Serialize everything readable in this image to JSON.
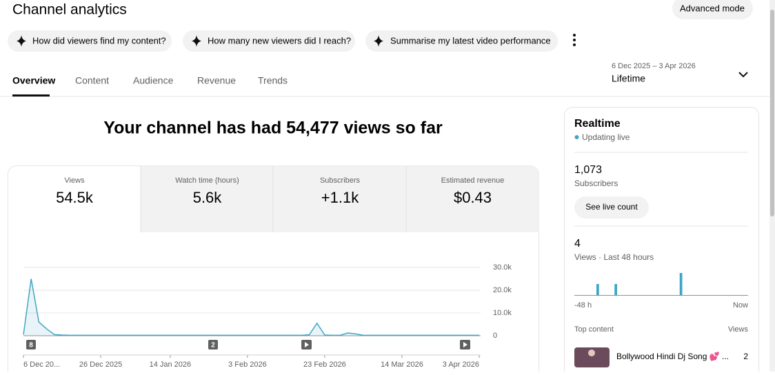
{
  "header": {
    "title": "Channel analytics",
    "advanced_mode": "Advanced mode"
  },
  "prompts": [
    "How did viewers find my content?",
    "How many new viewers did I reach?",
    "Summarise my latest video performance"
  ],
  "tabs": [
    "Overview",
    "Content",
    "Audience",
    "Revenue",
    "Trends"
  ],
  "date_range": {
    "range": "6 Dec 2025 – 3 Apr 2026",
    "period": "Lifetime"
  },
  "headline": "Your channel has had 54,477 views so far",
  "metrics": [
    {
      "label": "Views",
      "value": "54.5k"
    },
    {
      "label": "Watch time (hours)",
      "value": "5.6k"
    },
    {
      "label": "Subscribers",
      "value": "+1.1k"
    },
    {
      "label": "Estimated revenue",
      "value": "$0.43"
    }
  ],
  "chart": {
    "type": "line",
    "color": "#3ea6c4",
    "categories": [
      "6 Dec 20...",
      null,
      null,
      null,
      null,
      null,
      null,
      null,
      null,
      null,
      "26 Dec 2025",
      null,
      null,
      null,
      null,
      null,
      null,
      null,
      null,
      "14 Jan 2026",
      null,
      null,
      null,
      null,
      null,
      null,
      null,
      null,
      null,
      "3 Feb 2026",
      null,
      null,
      null,
      null,
      null,
      null,
      null,
      null,
      null,
      "23 Feb 2026",
      null,
      null,
      null,
      null,
      null,
      null,
      null,
      null,
      null,
      "14 Mar 2026",
      null,
      null,
      null,
      null,
      null,
      null,
      null,
      null,
      null,
      "3 Apr 2026"
    ],
    "values": [
      500,
      25000,
      6000,
      3000,
      500,
      300,
      200,
      200,
      200,
      200,
      200,
      200,
      200,
      200,
      200,
      200,
      200,
      200,
      200,
      200,
      200,
      200,
      200,
      200,
      200,
      200,
      200,
      200,
      200,
      200,
      200,
      200,
      200,
      200,
      200,
      200,
      200,
      400,
      5500,
      300,
      200,
      200,
      1200,
      800,
      200,
      200,
      200,
      200,
      200,
      200,
      200,
      200,
      200,
      200,
      200,
      200,
      200,
      200,
      200,
      200
    ],
    "ylim": [
      0,
      30000
    ],
    "yticks": [
      0,
      {
        "value": 10000,
        "label": "10.0k"
      },
      {
        "value": 20000,
        "label": "20.0k"
      },
      {
        "value": 30000,
        "label": "30.0k"
      }
    ],
    "grid": true,
    "markers": [
      "8",
      "2"
    ]
  },
  "realtime": {
    "title": "Realtime",
    "status": "Updating live",
    "subscribers": "1,073",
    "subscribers_label": "Subscribers",
    "button": "See live count",
    "views": "4",
    "views_label": "Views · Last 48 hours",
    "bars": {
      "color": "#3ea6c4",
      "values": [
        0,
        0,
        0,
        0,
        0,
        0,
        1,
        0,
        0,
        0,
        0,
        1,
        0,
        0,
        0,
        0,
        0,
        0,
        0,
        0,
        0,
        0,
        0,
        0,
        0,
        0,
        0,
        0,
        0,
        2,
        0,
        0,
        0,
        0,
        0,
        0,
        0,
        0,
        0,
        0,
        0,
        0,
        0,
        0,
        0,
        0,
        0,
        0
      ],
      "start": "-48 h",
      "end": "Now"
    },
    "top_content": {
      "title": "Top content",
      "views_label": "Views",
      "items": [
        {
          "title": "Bollywood Hindi Dj Song 💕 ...",
          "views": "2"
        }
      ]
    }
  }
}
